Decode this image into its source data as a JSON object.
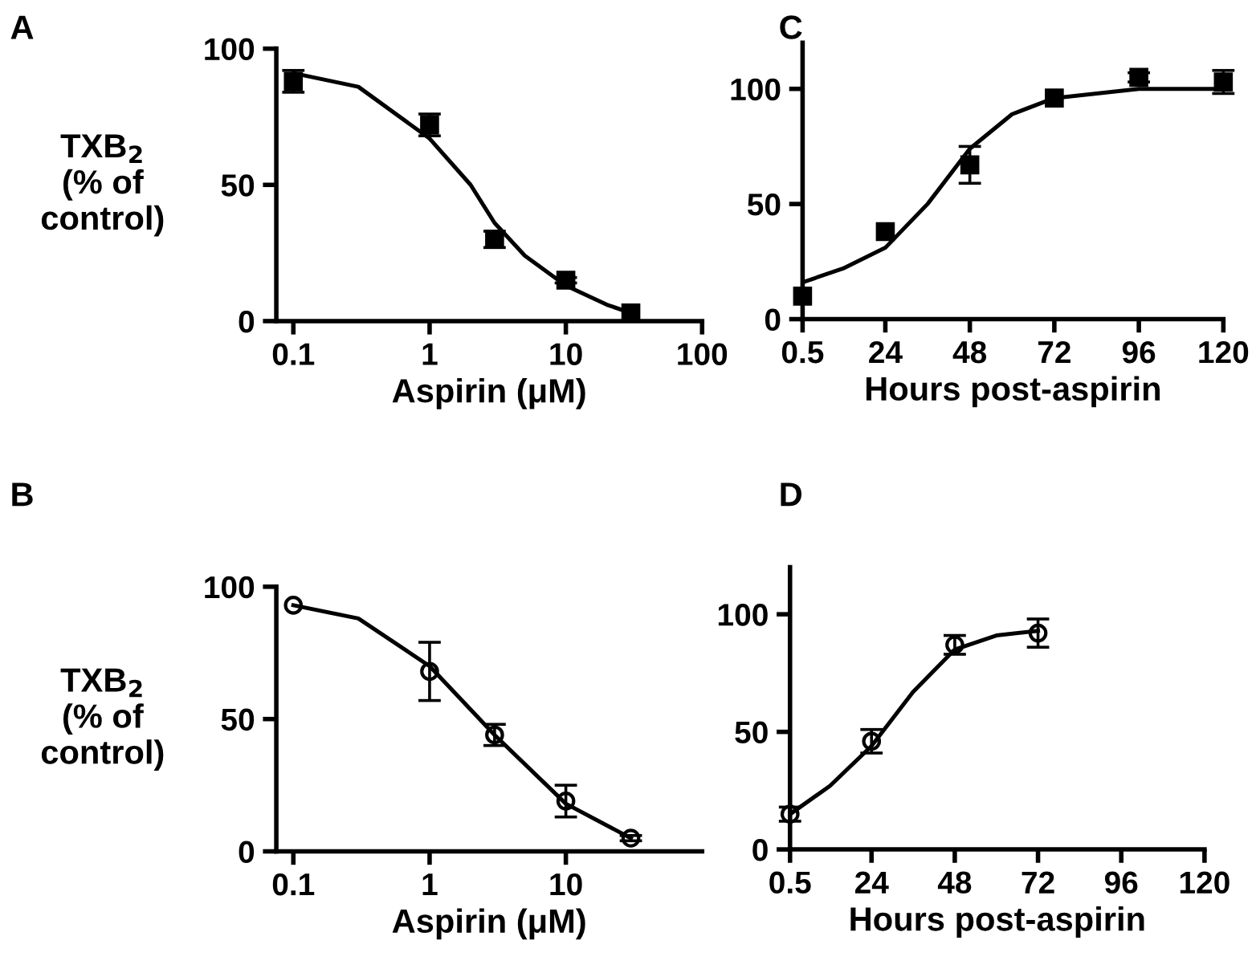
{
  "chart_data": [
    {
      "type": "scatter",
      "title": "A",
      "xlabel": "Aspirin (μM)",
      "ylabel": "TXB$_{2}$\n(% of\ncontrol)",
      "log": "x",
      "xlim": [
        0.075,
        100
      ],
      "xticks": [
        0.1,
        1,
        10,
        100
      ],
      "ylim": [
        0,
        100
      ],
      "yticks": [
        0,
        50,
        100
      ],
      "grid": false,
      "series": [
        {
          "marker": "square",
          "color": "#000000",
          "x": [
            0.1,
            1,
            3,
            10,
            30
          ],
          "values": [
            88,
            72,
            30,
            15,
            3
          ],
          "errors": [
            4,
            4,
            3,
            1,
            null
          ]
        },
        {
          "type": "line",
          "marker": "none",
          "color": "#000000",
          "x": [
            0.1,
            0.3,
            1,
            2,
            3,
            5,
            10,
            20,
            30
          ],
          "values": [
            91,
            86,
            67,
            50,
            36,
            24,
            13,
            6,
            3
          ]
        }
      ]
    },
    {
      "type": "scatter",
      "title": "C",
      "xlabel": "Hours post-aspirin",
      "xlim": [
        0.5,
        120
      ],
      "xticks": [
        0.5,
        24,
        48,
        72,
        96,
        120
      ],
      "ylim": [
        0,
        120
      ],
      "yticks": [
        0,
        50,
        100
      ],
      "grid": false,
      "series": [
        {
          "marker": "square",
          "color": "#000000",
          "x": [
            0.5,
            24,
            48,
            72,
            96,
            120
          ],
          "values": [
            10,
            38,
            67,
            96,
            105,
            103
          ],
          "errors": [
            null,
            null,
            8,
            null,
            2,
            5
          ]
        },
        {
          "type": "line",
          "marker": "none",
          "color": "#000000",
          "x": [
            0.5,
            12,
            24,
            36,
            48,
            60,
            72,
            96,
            120
          ],
          "values": [
            16,
            22,
            31,
            50,
            74,
            89,
            96,
            100,
            100
          ]
        }
      ]
    },
    {
      "type": "scatter",
      "title": "B",
      "xlabel": "Aspirin (μM)",
      "ylabel": "TXB$_{2}$\n(% of\ncontrol)",
      "log": "x",
      "xlim": [
        0.075,
        100
      ],
      "xticks": [
        0.1,
        1,
        10
      ],
      "ylim": [
        0,
        100
      ],
      "yticks": [
        0,
        50,
        100
      ],
      "grid": false,
      "series": [
        {
          "marker": "circle",
          "color": "#000000",
          "x": [
            0.1,
            1,
            3,
            10,
            30
          ],
          "values": [
            93,
            68,
            44,
            19,
            5
          ],
          "errors": [
            null,
            11,
            4,
            6,
            1
          ]
        },
        {
          "type": "line",
          "marker": "none",
          "color": "#000000",
          "x": [
            0.1,
            0.3,
            1,
            3,
            10,
            30
          ],
          "values": [
            93,
            88,
            70,
            44,
            18,
            5
          ]
        }
      ]
    },
    {
      "type": "scatter",
      "title": "D",
      "xlabel": "Hours post-aspirin",
      "xlim": [
        0.5,
        120
      ],
      "xticks": [
        0.5,
        24,
        48,
        72,
        96,
        120
      ],
      "ylim": [
        0,
        120
      ],
      "yticks": [
        0,
        50,
        100
      ],
      "grid": false,
      "series": [
        {
          "marker": "circle",
          "color": "#000000",
          "x": [
            0.5,
            24,
            48,
            72
          ],
          "values": [
            15,
            46,
            87,
            92
          ],
          "errors": [
            3,
            5,
            4,
            6
          ]
        },
        {
          "type": "line",
          "marker": "none",
          "color": "#000000",
          "x": [
            0.5,
            12,
            24,
            36,
            48,
            60,
            72
          ],
          "values": [
            15,
            27,
            44,
            67,
            85,
            91,
            93
          ]
        }
      ]
    }
  ]
}
